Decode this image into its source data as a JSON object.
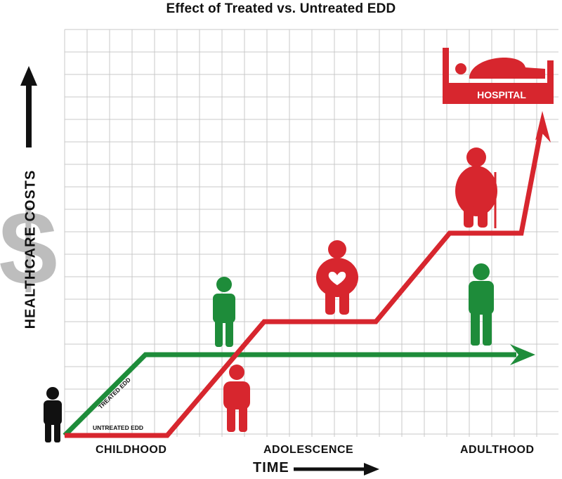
{
  "title": "Effect of Treated vs. Untreated EDD",
  "axes": {
    "x_label": "TIME",
    "y_label": "HEALTHCARE COSTS",
    "y_symbol": "$"
  },
  "stages": {
    "childhood": "CHILDHOOD",
    "adolescence": "ADOLESCENCE",
    "adulthood": "ADULTHOOD"
  },
  "lines": {
    "treated": {
      "label": "TREATED EDD",
      "color": "#1e8c3a"
    },
    "untreated": {
      "label": "UNTREATED EDD",
      "color": "#d7262e"
    }
  },
  "hospital": {
    "label": "HOSPITAL",
    "color": "#d7262e"
  },
  "colors": {
    "grid": "#c8c8c8",
    "figure_neutral": "#111111",
    "dollar": "#bdbdbd"
  }
}
